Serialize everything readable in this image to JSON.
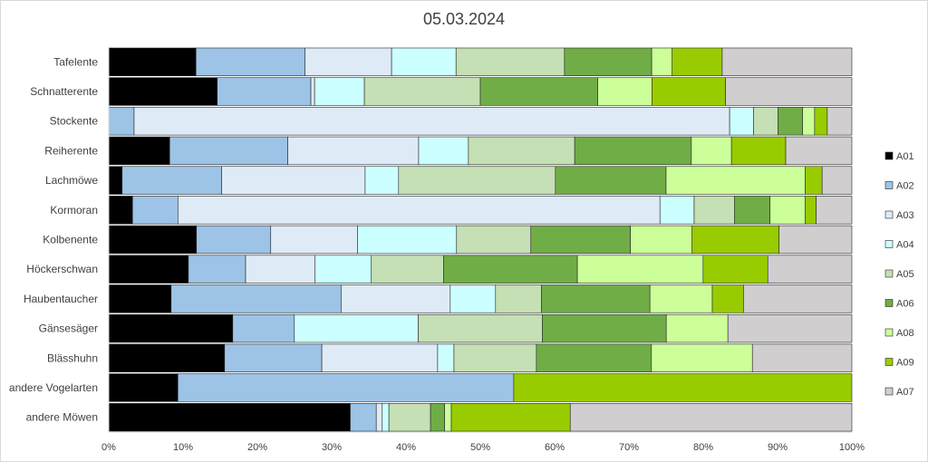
{
  "chart_data": {
    "type": "bar",
    "orientation": "horizontal",
    "stacked": "percent",
    "title": "05.03.2024",
    "xlabel": "",
    "ylabel": "",
    "xlim": [
      0,
      100
    ],
    "x_ticks": [
      "0%",
      "10%",
      "20%",
      "30%",
      "40%",
      "50%",
      "60%",
      "70%",
      "80%",
      "90%",
      "100%"
    ],
    "grid": false,
    "legend_position": "right",
    "categories": [
      "Tafelente",
      "Schnatterente",
      "Stockente",
      "Reiherente",
      "Lachmöwe",
      "Kormoran",
      "Kolbenente",
      "Höckerschwan",
      "Haubentaucher",
      "Gänsesäger",
      "Blässhuhn",
      "andere Vogelarten",
      "andere Möwen"
    ],
    "series": [
      {
        "name": "A01",
        "color": "#000000",
        "values": [
          11.5,
          14.6,
          0,
          8.2,
          1.8,
          3.2,
          11.8,
          10.7,
          8.4,
          16.7,
          15.6,
          9.3,
          32.5
        ]
      },
      {
        "name": "A02",
        "color": "#9dc3e6",
        "values": [
          14.4,
          12.6,
          3.4,
          15.9,
          13.4,
          6.1,
          10.0,
          7.7,
          22.9,
          8.3,
          13.1,
          45.2,
          3.5
        ]
      },
      {
        "name": "A03",
        "color": "#deebf7",
        "values": [
          11.4,
          0.5,
          79.9,
          17.6,
          19.3,
          64.8,
          11.7,
          9.3,
          14.7,
          0,
          15.6,
          0,
          0.8
        ]
      },
      {
        "name": "A04",
        "color": "#ccffff",
        "values": [
          8.5,
          6.7,
          3.2,
          6.7,
          4.5,
          4.6,
          13.3,
          7.6,
          6.1,
          16.7,
          2.2,
          0,
          0.9
        ]
      },
      {
        "name": "A05",
        "color": "#c5e0b4",
        "values": [
          14.3,
          15.6,
          3.3,
          14.3,
          21.1,
          5.4,
          10.0,
          9.7,
          6.2,
          16.7,
          11.1,
          0,
          5.6
        ]
      },
      {
        "name": "A06",
        "color": "#70ad47",
        "values": [
          11.5,
          15.8,
          3.3,
          15.7,
          14.9,
          4.8,
          13.4,
          18.0,
          14.6,
          16.7,
          15.5,
          0,
          1.9
        ]
      },
      {
        "name": "A08",
        "color": "#ccff99",
        "values": [
          2.7,
          7.3,
          1.6,
          5.4,
          18.7,
          4.7,
          8.3,
          16.9,
          8.4,
          8.3,
          13.6,
          0,
          0.9
        ]
      },
      {
        "name": "A09",
        "color": "#99cc00",
        "values": [
          6.6,
          9.9,
          1.7,
          7.3,
          2.3,
          1.5,
          11.7,
          8.7,
          4.2,
          0,
          0,
          45.5,
          16.0
        ]
      },
      {
        "name": "A07",
        "color": "#d0cece",
        "values": [
          17.1,
          17.0,
          3.3,
          8.9,
          4.0,
          4.8,
          9.8,
          11.3,
          14.6,
          16.7,
          13.4,
          0,
          37.9
        ]
      }
    ]
  }
}
